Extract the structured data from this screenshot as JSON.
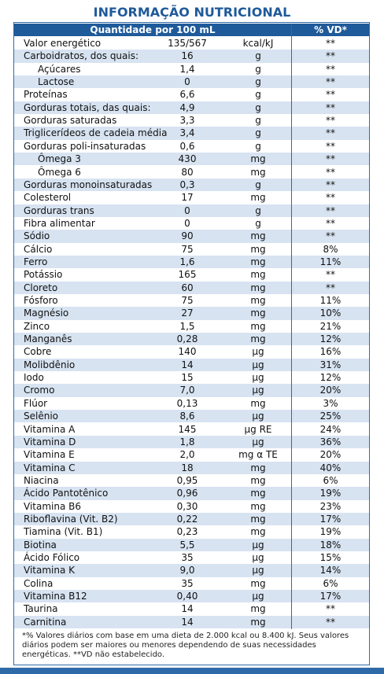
{
  "title": "INFORMAÇÃO NUTRICIONAL",
  "header": {
    "amount": "Quantidade por 100 mL",
    "dv": "% VD*"
  },
  "rows": [
    {
      "name": "Valor energético",
      "amount": "135/567",
      "unit": "kcal/kJ",
      "dv": "**"
    },
    {
      "name": "Carboidratos, dos quais:",
      "amount": "16",
      "unit": "g",
      "dv": "**"
    },
    {
      "name": "Açúcares",
      "amount": "1,4",
      "unit": "g",
      "dv": "**",
      "indent": true
    },
    {
      "name": "Lactose",
      "amount": "0",
      "unit": "g",
      "dv": "**",
      "indent": true
    },
    {
      "name": "Proteínas",
      "amount": "6,6",
      "unit": "g",
      "dv": "**"
    },
    {
      "name": "Gorduras totais, das quais:",
      "amount": "4,9",
      "unit": "g",
      "dv": "**"
    },
    {
      "name": "Gorduras saturadas",
      "amount": "3,3",
      "unit": "g",
      "dv": "**"
    },
    {
      "name": "Triglicerídeos de cadeia média",
      "amount": "3,4",
      "unit": "g",
      "dv": "**"
    },
    {
      "name": "Gorduras poli-insaturadas",
      "amount": "0,6",
      "unit": "g",
      "dv": "**"
    },
    {
      "name": "Ômega 3",
      "amount": "430",
      "unit": "mg",
      "dv": "**",
      "indent": true
    },
    {
      "name": "Ômega 6",
      "amount": "80",
      "unit": "mg",
      "dv": "**",
      "indent": true
    },
    {
      "name": "Gorduras monoinsaturadas",
      "amount": "0,3",
      "unit": "g",
      "dv": "**"
    },
    {
      "name": "Colesterol",
      "amount": "17",
      "unit": "mg",
      "dv": "**"
    },
    {
      "name": "Gorduras trans",
      "amount": "0",
      "unit": "g",
      "dv": "**"
    },
    {
      "name": "Fibra alimentar",
      "amount": "0",
      "unit": "g",
      "dv": "**"
    },
    {
      "name": "Sódio",
      "amount": "90",
      "unit": "mg",
      "dv": "**"
    },
    {
      "name": "Cálcio",
      "amount": "75",
      "unit": "mg",
      "dv": "8%"
    },
    {
      "name": "Ferro",
      "amount": "1,6",
      "unit": "mg",
      "dv": "11%"
    },
    {
      "name": "Potássio",
      "amount": "165",
      "unit": "mg",
      "dv": "**"
    },
    {
      "name": "Cloreto",
      "amount": "60",
      "unit": "mg",
      "dv": "**"
    },
    {
      "name": "Fósforo",
      "amount": "75",
      "unit": "mg",
      "dv": "11%"
    },
    {
      "name": "Magnésio",
      "amount": "27",
      "unit": "mg",
      "dv": "10%"
    },
    {
      "name": "Zinco",
      "amount": "1,5",
      "unit": "mg",
      "dv": "21%"
    },
    {
      "name": "Manganês",
      "amount": "0,28",
      "unit": "mg",
      "dv": "12%"
    },
    {
      "name": "Cobre",
      "amount": "140",
      "unit": "µg",
      "dv": "16%"
    },
    {
      "name": "Molibdênio",
      "amount": "14",
      "unit": "µg",
      "dv": "31%"
    },
    {
      "name": "Iodo",
      "amount": "15",
      "unit": "µg",
      "dv": "12%"
    },
    {
      "name": "Cromo",
      "amount": "7,0",
      "unit": "µg",
      "dv": "20%"
    },
    {
      "name": "Flúor",
      "amount": "0,13",
      "unit": "mg",
      "dv": "3%"
    },
    {
      "name": "Selênio",
      "amount": "8,6",
      "unit": "µg",
      "dv": "25%"
    },
    {
      "name": "Vitamina A",
      "amount": "145",
      "unit": "µg RE",
      "dv": "24%"
    },
    {
      "name": "Vitamina D",
      "amount": "1,8",
      "unit": "µg",
      "dv": "36%"
    },
    {
      "name": "Vitamina E",
      "amount": "2,0",
      "unit": "mg α TE",
      "dv": "20%"
    },
    {
      "name": "Vitamina C",
      "amount": "18",
      "unit": "mg",
      "dv": "40%"
    },
    {
      "name": "Niacina",
      "amount": "0,95",
      "unit": "mg",
      "dv": "6%"
    },
    {
      "name": "Ácido Pantotênico",
      "amount": "0,96",
      "unit": "mg",
      "dv": "19%"
    },
    {
      "name": "Vitamina B6",
      "amount": "0,30",
      "unit": "mg",
      "dv": "23%"
    },
    {
      "name": "Riboflavina (Vit. B2)",
      "amount": "0,22",
      "unit": "mg",
      "dv": "17%"
    },
    {
      "name": "Tiamina (Vit. B1)",
      "amount": "0,23",
      "unit": "mg",
      "dv": "19%"
    },
    {
      "name": "Biotina",
      "amount": "5,5",
      "unit": "µg",
      "dv": "18%"
    },
    {
      "name": "Ácido Fólico",
      "amount": "35",
      "unit": "µg",
      "dv": "15%"
    },
    {
      "name": "Vitamina K",
      "amount": "9,0",
      "unit": "µg",
      "dv": "14%"
    },
    {
      "name": "Colina",
      "amount": "35",
      "unit": "mg",
      "dv": "6%"
    },
    {
      "name": "Vitamina B12",
      "amount": "0,40",
      "unit": "µg",
      "dv": "17%"
    },
    {
      "name": "Taurina",
      "amount": "14",
      "unit": "mg",
      "dv": "**"
    },
    {
      "name": "Carnitina",
      "amount": "14",
      "unit": "mg",
      "dv": "**"
    }
  ],
  "footnote": "*% Valores diários com base em uma dieta de 2.000 kcal ou 8.400 kJ. Seus valores diários podem ser maiores ou menores dependendo de suas necessidades energéticas. **VD não estabelecido."
}
